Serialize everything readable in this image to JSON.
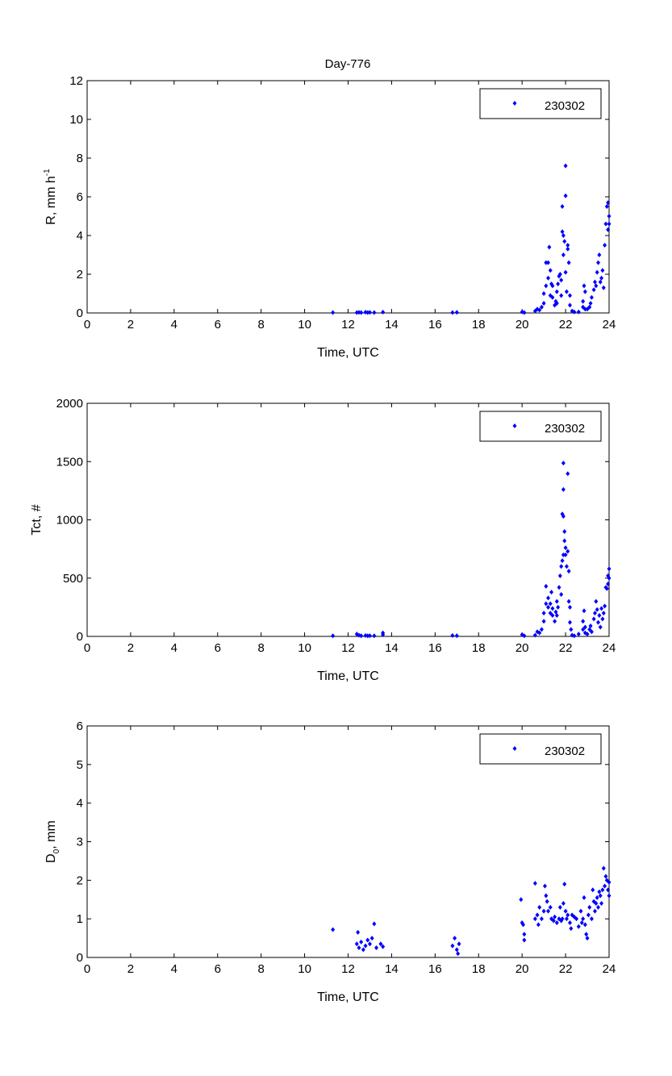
{
  "title": "Day-776",
  "colors": {
    "marker": "#0000ff",
    "axis": "#000000"
  },
  "chart_data": [
    {
      "type": "scatter",
      "title": "Day-776",
      "xlabel": "Time, UTC",
      "ylabel": {
        "main": "R, mm h",
        "sup": "-1"
      },
      "xlim": [
        0,
        24
      ],
      "ylim": [
        0,
        12
      ],
      "xticks": [
        "0",
        "2",
        "4",
        "6",
        "8",
        "10",
        "12",
        "14",
        "16",
        "18",
        "20",
        "22",
        "24"
      ],
      "yticks": [
        "0",
        "2",
        "4",
        "6",
        "8",
        "10",
        "12"
      ],
      "legend": {
        "label": "230302",
        "placement": "top-right"
      },
      "series": [
        {
          "name": "230302",
          "points": [
            [
              11.3,
              0.02
            ],
            [
              12.4,
              0.02
            ],
            [
              12.5,
              0.03
            ],
            [
              12.6,
              0.02
            ],
            [
              12.8,
              0.04
            ],
            [
              12.9,
              0.02
            ],
            [
              13.0,
              0.03
            ],
            [
              13.2,
              0.02
            ],
            [
              13.6,
              0.04
            ],
            [
              16.8,
              0.02
            ],
            [
              17.0,
              0.03
            ],
            [
              20.0,
              0.05
            ],
            [
              20.1,
              0.02
            ],
            [
              20.6,
              0.1
            ],
            [
              20.7,
              0.2
            ],
            [
              20.8,
              0.15
            ],
            [
              20.9,
              0.3
            ],
            [
              21.0,
              0.5
            ],
            [
              21.0,
              1.0
            ],
            [
              21.1,
              1.4
            ],
            [
              21.1,
              2.6
            ],
            [
              21.2,
              2.6
            ],
            [
              21.2,
              1.8
            ],
            [
              21.3,
              0.9
            ],
            [
              21.25,
              3.4
            ],
            [
              21.3,
              2.2
            ],
            [
              21.35,
              1.5
            ],
            [
              21.4,
              1.4
            ],
            [
              21.4,
              0.8
            ],
            [
              21.5,
              0.4
            ],
            [
              21.55,
              0.6
            ],
            [
              21.6,
              0.5
            ],
            [
              21.6,
              1.1
            ],
            [
              21.65,
              1.5
            ],
            [
              21.7,
              1.9
            ],
            [
              21.75,
              2.0
            ],
            [
              21.8,
              1.7
            ],
            [
              21.8,
              0.9
            ],
            [
              21.85,
              4.2
            ],
            [
              21.9,
              4.0
            ],
            [
              21.85,
              5.5
            ],
            [
              21.9,
              3.0
            ],
            [
              21.95,
              3.7
            ],
            [
              22.0,
              6.05
            ],
            [
              22.0,
              7.6
            ],
            [
              22.0,
              2.1
            ],
            [
              22.05,
              1.1
            ],
            [
              22.1,
              3.5
            ],
            [
              22.1,
              3.3
            ],
            [
              22.15,
              2.6
            ],
            [
              22.2,
              0.9
            ],
            [
              22.2,
              0.4
            ],
            [
              22.3,
              0.1
            ],
            [
              22.4,
              0.05
            ],
            [
              22.6,
              0.05
            ],
            [
              22.8,
              0.3
            ],
            [
              22.8,
              0.6
            ],
            [
              22.85,
              1.4
            ],
            [
              22.9,
              1.1
            ],
            [
              22.9,
              0.2
            ],
            [
              23.0,
              0.2
            ],
            [
              23.1,
              0.3
            ],
            [
              23.15,
              0.5
            ],
            [
              23.2,
              0.8
            ],
            [
              23.3,
              1.2
            ],
            [
              23.35,
              1.6
            ],
            [
              23.4,
              1.4
            ],
            [
              23.45,
              2.1
            ],
            [
              23.5,
              2.6
            ],
            [
              23.55,
              3.0
            ],
            [
              23.6,
              1.6
            ],
            [
              23.65,
              1.8
            ],
            [
              23.7,
              2.2
            ],
            [
              23.75,
              1.3
            ],
            [
              23.8,
              3.5
            ],
            [
              23.85,
              4.6
            ],
            [
              23.9,
              5.5
            ],
            [
              23.95,
              5.7
            ],
            [
              23.95,
              4.3
            ],
            [
              24.0,
              4.6
            ],
            [
              24.0,
              5.0
            ]
          ]
        }
      ]
    },
    {
      "type": "scatter",
      "xlabel": "Time, UTC",
      "ylabel": {
        "main": "Tct, #"
      },
      "xlim": [
        0,
        24
      ],
      "ylim": [
        0,
        2000
      ],
      "xticks": [
        "0",
        "2",
        "4",
        "6",
        "8",
        "10",
        "12",
        "14",
        "16",
        "18",
        "20",
        "22",
        "24"
      ],
      "yticks": [
        "0",
        "500",
        "1000",
        "1500",
        "2000"
      ],
      "legend": {
        "label": "230302",
        "placement": "top-right"
      },
      "series": [
        {
          "name": "230302",
          "points": [
            [
              11.3,
              5
            ],
            [
              12.4,
              20
            ],
            [
              12.5,
              10
            ],
            [
              12.6,
              5
            ],
            [
              12.8,
              8
            ],
            [
              12.9,
              5
            ],
            [
              13.0,
              6
            ],
            [
              13.2,
              5
            ],
            [
              13.6,
              30
            ],
            [
              13.6,
              15
            ],
            [
              16.8,
              8
            ],
            [
              17.0,
              6
            ],
            [
              20.0,
              15
            ],
            [
              20.1,
              5
            ],
            [
              20.6,
              10
            ],
            [
              20.7,
              40
            ],
            [
              20.8,
              30
            ],
            [
              20.9,
              60
            ],
            [
              21.0,
              130
            ],
            [
              21.0,
              200
            ],
            [
              21.1,
              280
            ],
            [
              21.1,
              430
            ],
            [
              21.2,
              250
            ],
            [
              21.2,
              330
            ],
            [
              21.3,
              200
            ],
            [
              21.3,
              280
            ],
            [
              21.35,
              380
            ],
            [
              21.4,
              240
            ],
            [
              21.4,
              180
            ],
            [
              21.5,
              130
            ],
            [
              21.55,
              210
            ],
            [
              21.6,
              300
            ],
            [
              21.6,
              180
            ],
            [
              21.65,
              250
            ],
            [
              21.7,
              420
            ],
            [
              21.75,
              520
            ],
            [
              21.8,
              600
            ],
            [
              21.8,
              360
            ],
            [
              21.85,
              650
            ],
            [
              21.9,
              700
            ],
            [
              21.85,
              1050
            ],
            [
              21.9,
              1030
            ],
            [
              21.9,
              1260
            ],
            [
              21.9,
              1487
            ],
            [
              21.95,
              820
            ],
            [
              21.95,
              900
            ],
            [
              22.0,
              760
            ],
            [
              22.0,
              700
            ],
            [
              22.05,
              600
            ],
            [
              22.1,
              1396
            ],
            [
              22.1,
              730
            ],
            [
              22.15,
              560
            ],
            [
              22.15,
              300
            ],
            [
              22.2,
              250
            ],
            [
              22.2,
              120
            ],
            [
              22.25,
              60
            ],
            [
              22.3,
              10
            ],
            [
              22.4,
              5
            ],
            [
              22.6,
              20
            ],
            [
              22.8,
              60
            ],
            [
              22.8,
              130
            ],
            [
              22.85,
              220
            ],
            [
              22.9,
              80
            ],
            [
              22.9,
              30
            ],
            [
              23.0,
              20
            ],
            [
              23.1,
              60
            ],
            [
              23.15,
              90
            ],
            [
              23.2,
              40
            ],
            [
              23.3,
              150
            ],
            [
              23.35,
              200
            ],
            [
              23.4,
              300
            ],
            [
              23.45,
              230
            ],
            [
              23.5,
              120
            ],
            [
              23.55,
              180
            ],
            [
              23.6,
              80
            ],
            [
              23.65,
              240
            ],
            [
              23.7,
              150
            ],
            [
              23.75,
              200
            ],
            [
              23.8,
              260
            ],
            [
              23.85,
              420
            ],
            [
              23.9,
              410
            ],
            [
              23.95,
              520
            ],
            [
              23.95,
              450
            ],
            [
              24.0,
              580
            ],
            [
              24.0,
              500
            ]
          ]
        }
      ]
    },
    {
      "type": "scatter",
      "xlabel": "Time, UTC",
      "ylabel": {
        "main": "D",
        "sub": "0",
        "rest": ", mm"
      },
      "xlim": [
        0,
        24
      ],
      "ylim": [
        0,
        6
      ],
      "xticks": [
        "0",
        "2",
        "4",
        "6",
        "8",
        "10",
        "12",
        "14",
        "16",
        "18",
        "20",
        "22",
        "24"
      ],
      "yticks": [
        "0",
        "1",
        "2",
        "3",
        "4",
        "5",
        "6"
      ],
      "legend": {
        "label": "230302",
        "placement": "top-right"
      },
      "series": [
        {
          "name": "230302",
          "points": [
            [
              11.3,
              0.72
            ],
            [
              12.4,
              0.35
            ],
            [
              12.45,
              0.65
            ],
            [
              12.5,
              0.25
            ],
            [
              12.6,
              0.4
            ],
            [
              12.7,
              0.2
            ],
            [
              12.8,
              0.3
            ],
            [
              12.9,
              0.45
            ],
            [
              13.0,
              0.35
            ],
            [
              13.1,
              0.5
            ],
            [
              13.2,
              0.87
            ],
            [
              13.3,
              0.25
            ],
            [
              13.5,
              0.35
            ],
            [
              13.6,
              0.28
            ],
            [
              16.8,
              0.3
            ],
            [
              16.9,
              0.5
            ],
            [
              17.0,
              0.2
            ],
            [
              17.05,
              0.1
            ],
            [
              17.1,
              0.35
            ],
            [
              19.95,
              1.5
            ],
            [
              20.0,
              0.9
            ],
            [
              20.05,
              0.85
            ],
            [
              20.1,
              0.6
            ],
            [
              20.1,
              0.45
            ],
            [
              20.6,
              1.92
            ],
            [
              20.6,
              1.0
            ],
            [
              20.7,
              1.1
            ],
            [
              20.75,
              0.85
            ],
            [
              20.8,
              1.3
            ],
            [
              20.9,
              1.0
            ],
            [
              21.0,
              1.2
            ],
            [
              21.05,
              1.85
            ],
            [
              21.1,
              1.6
            ],
            [
              21.15,
              1.45
            ],
            [
              21.2,
              1.2
            ],
            [
              21.3,
              1.3
            ],
            [
              21.35,
              1.0
            ],
            [
              21.45,
              0.95
            ],
            [
              21.5,
              1.05
            ],
            [
              21.6,
              0.9
            ],
            [
              21.7,
              1.0
            ],
            [
              21.75,
              1.3
            ],
            [
              21.8,
              0.95
            ],
            [
              21.85,
              1.0
            ],
            [
              21.9,
              1.4
            ],
            [
              21.95,
              1.9
            ],
            [
              22.0,
              1.2
            ],
            [
              22.05,
              1.0
            ],
            [
              22.1,
              1.1
            ],
            [
              22.2,
              0.9
            ],
            [
              22.25,
              0.75
            ],
            [
              22.3,
              1.1
            ],
            [
              22.4,
              1.05
            ],
            [
              22.5,
              1.0
            ],
            [
              22.6,
              0.8
            ],
            [
              22.7,
              1.2
            ],
            [
              22.75,
              0.9
            ],
            [
              22.8,
              1.0
            ],
            [
              22.85,
              1.55
            ],
            [
              22.9,
              0.85
            ],
            [
              22.95,
              0.6
            ],
            [
              23.0,
              0.5
            ],
            [
              23.05,
              1.1
            ],
            [
              23.1,
              1.3
            ],
            [
              23.2,
              1.0
            ],
            [
              23.25,
              1.75
            ],
            [
              23.3,
              1.45
            ],
            [
              23.35,
              1.2
            ],
            [
              23.4,
              1.4
            ],
            [
              23.45,
              1.55
            ],
            [
              23.5,
              1.3
            ],
            [
              23.55,
              1.7
            ],
            [
              23.6,
              1.6
            ],
            [
              23.65,
              1.4
            ],
            [
              23.7,
              1.75
            ],
            [
              23.75,
              2.31
            ],
            [
              23.8,
              1.85
            ],
            [
              23.85,
              2.1
            ],
            [
              23.9,
              2.0
            ],
            [
              23.95,
              1.75
            ],
            [
              24.0,
              1.95
            ],
            [
              24.0,
              1.6
            ]
          ]
        }
      ]
    }
  ]
}
